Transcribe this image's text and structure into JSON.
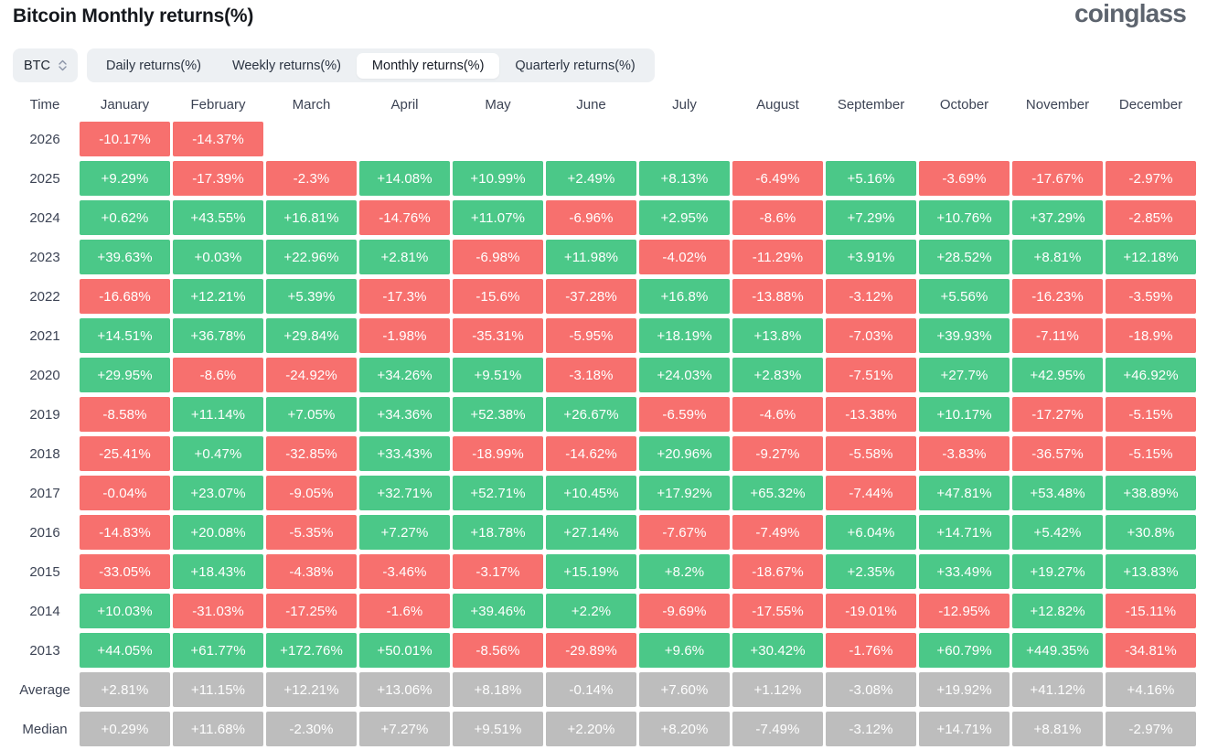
{
  "header": {
    "title": "Bitcoin Monthly returns(%)",
    "logo_text": "coinglass"
  },
  "controls": {
    "symbol_select": {
      "value": "BTC"
    },
    "tabs": [
      {
        "label": "Daily returns(%)",
        "active": false
      },
      {
        "label": "Weekly returns(%)",
        "active": false
      },
      {
        "label": "Monthly returns(%)",
        "active": true
      },
      {
        "label": "Quarterly returns(%)",
        "active": false
      }
    ]
  },
  "colors": {
    "positive": "#4bc888",
    "negative": "#f7706e",
    "neutral": "#bdbdbd"
  },
  "table": {
    "time_header": "Time",
    "months": [
      "January",
      "February",
      "March",
      "April",
      "May",
      "June",
      "July",
      "August",
      "September",
      "October",
      "November",
      "December"
    ],
    "rows": [
      {
        "label": "2026",
        "summary": false,
        "cells": [
          "-10.17%",
          "-14.37%",
          "",
          "",
          "",
          "",
          "",
          "",
          "",
          "",
          "",
          ""
        ]
      },
      {
        "label": "2025",
        "summary": false,
        "cells": [
          "+9.29%",
          "-17.39%",
          "-2.3%",
          "+14.08%",
          "+10.99%",
          "+2.49%",
          "+8.13%",
          "-6.49%",
          "+5.16%",
          "-3.69%",
          "-17.67%",
          "-2.97%"
        ]
      },
      {
        "label": "2024",
        "summary": false,
        "cells": [
          "+0.62%",
          "+43.55%",
          "+16.81%",
          "-14.76%",
          "+11.07%",
          "-6.96%",
          "+2.95%",
          "-8.6%",
          "+7.29%",
          "+10.76%",
          "+37.29%",
          "-2.85%"
        ]
      },
      {
        "label": "2023",
        "summary": false,
        "cells": [
          "+39.63%",
          "+0.03%",
          "+22.96%",
          "+2.81%",
          "-6.98%",
          "+11.98%",
          "-4.02%",
          "-11.29%",
          "+3.91%",
          "+28.52%",
          "+8.81%",
          "+12.18%"
        ]
      },
      {
        "label": "2022",
        "summary": false,
        "cells": [
          "-16.68%",
          "+12.21%",
          "+5.39%",
          "-17.3%",
          "-15.6%",
          "-37.28%",
          "+16.8%",
          "-13.88%",
          "-3.12%",
          "+5.56%",
          "-16.23%",
          "-3.59%"
        ]
      },
      {
        "label": "2021",
        "summary": false,
        "cells": [
          "+14.51%",
          "+36.78%",
          "+29.84%",
          "-1.98%",
          "-35.31%",
          "-5.95%",
          "+18.19%",
          "+13.8%",
          "-7.03%",
          "+39.93%",
          "-7.11%",
          "-18.9%"
        ]
      },
      {
        "label": "2020",
        "summary": false,
        "cells": [
          "+29.95%",
          "-8.6%",
          "-24.92%",
          "+34.26%",
          "+9.51%",
          "-3.18%",
          "+24.03%",
          "+2.83%",
          "-7.51%",
          "+27.7%",
          "+42.95%",
          "+46.92%"
        ]
      },
      {
        "label": "2019",
        "summary": false,
        "cells": [
          "-8.58%",
          "+11.14%",
          "+7.05%",
          "+34.36%",
          "+52.38%",
          "+26.67%",
          "-6.59%",
          "-4.6%",
          "-13.38%",
          "+10.17%",
          "-17.27%",
          "-5.15%"
        ]
      },
      {
        "label": "2018",
        "summary": false,
        "cells": [
          "-25.41%",
          "+0.47%",
          "-32.85%",
          "+33.43%",
          "-18.99%",
          "-14.62%",
          "+20.96%",
          "-9.27%",
          "-5.58%",
          "-3.83%",
          "-36.57%",
          "-5.15%"
        ]
      },
      {
        "label": "2017",
        "summary": false,
        "cells": [
          "-0.04%",
          "+23.07%",
          "-9.05%",
          "+32.71%",
          "+52.71%",
          "+10.45%",
          "+17.92%",
          "+65.32%",
          "-7.44%",
          "+47.81%",
          "+53.48%",
          "+38.89%"
        ]
      },
      {
        "label": "2016",
        "summary": false,
        "cells": [
          "-14.83%",
          "+20.08%",
          "-5.35%",
          "+7.27%",
          "+18.78%",
          "+27.14%",
          "-7.67%",
          "-7.49%",
          "+6.04%",
          "+14.71%",
          "+5.42%",
          "+30.8%"
        ]
      },
      {
        "label": "2015",
        "summary": false,
        "cells": [
          "-33.05%",
          "+18.43%",
          "-4.38%",
          "-3.46%",
          "-3.17%",
          "+15.19%",
          "+8.2%",
          "-18.67%",
          "+2.35%",
          "+33.49%",
          "+19.27%",
          "+13.83%"
        ]
      },
      {
        "label": "2014",
        "summary": false,
        "cells": [
          "+10.03%",
          "-31.03%",
          "-17.25%",
          "-1.6%",
          "+39.46%",
          "+2.2%",
          "-9.69%",
          "-17.55%",
          "-19.01%",
          "-12.95%",
          "+12.82%",
          "-15.11%"
        ]
      },
      {
        "label": "2013",
        "summary": false,
        "cells": [
          "+44.05%",
          "+61.77%",
          "+172.76%",
          "+50.01%",
          "-8.56%",
          "-29.89%",
          "+9.6%",
          "+30.42%",
          "-1.76%",
          "+60.79%",
          "+449.35%",
          "-34.81%"
        ]
      },
      {
        "label": "Average",
        "summary": true,
        "cells": [
          "+2.81%",
          "+11.15%",
          "+12.21%",
          "+13.06%",
          "+8.18%",
          "-0.14%",
          "+7.60%",
          "+1.12%",
          "-3.08%",
          "+19.92%",
          "+41.12%",
          "+4.16%"
        ]
      },
      {
        "label": "Median",
        "summary": true,
        "cells": [
          "+0.29%",
          "+11.68%",
          "-2.30%",
          "+7.27%",
          "+9.51%",
          "+2.20%",
          "+8.20%",
          "-7.49%",
          "-3.12%",
          "+14.71%",
          "+8.81%",
          "-2.97%"
        ]
      }
    ]
  }
}
